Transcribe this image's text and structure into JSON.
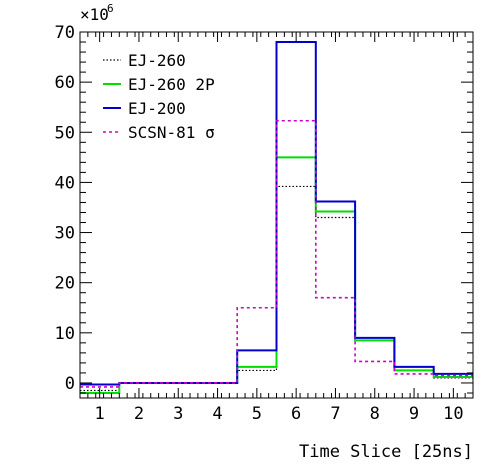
{
  "chart_data": {
    "type": "histogram",
    "title": "",
    "xlabel": "Time Slice [25ns]",
    "ylabel": "",
    "y_multiplier_label": "×10",
    "y_multiplier_exponent": "6",
    "x_bin_edges": [
      0.5,
      1.5,
      2.5,
      3.5,
      4.5,
      5.5,
      6.5,
      7.5,
      8.5,
      9.5,
      10.5
    ],
    "xlim": [
      0.5,
      10.5
    ],
    "ylim": [
      -3,
      70
    ],
    "x_ticks": [
      1,
      2,
      3,
      4,
      5,
      6,
      7,
      8,
      9,
      10
    ],
    "y_ticks": [
      0,
      10,
      20,
      30,
      40,
      50,
      60,
      70
    ],
    "grid": false,
    "legend_position": "top-left",
    "series": [
      {
        "name": "EJ-260",
        "style": "dotted",
        "color": "#000000",
        "width": 1.2,
        "values": [
          -1.5,
          0,
          0,
          0,
          2.5,
          39.2,
          33,
          8.5,
          2.5,
          1.0
        ]
      },
      {
        "name": "EJ-260 2P",
        "style": "solid",
        "color": "#00dd00",
        "width": 2,
        "values": [
          -2.0,
          0,
          0,
          0,
          3.2,
          45,
          34.2,
          8.5,
          2.5,
          1.2
        ]
      },
      {
        "name": "EJ-200",
        "style": "solid",
        "color": "#0000cc",
        "width": 2,
        "values": [
          -0.3,
          0,
          0,
          0,
          6.5,
          68,
          36.2,
          9.0,
          3.2,
          1.8
        ]
      },
      {
        "name": "SCSN-81 σ",
        "style": "dashed",
        "color": "#cc00cc",
        "width": 1.6,
        "values": [
          -0.8,
          0,
          0,
          0,
          15,
          52.3,
          17,
          4.3,
          1.8,
          1.5
        ]
      }
    ]
  }
}
